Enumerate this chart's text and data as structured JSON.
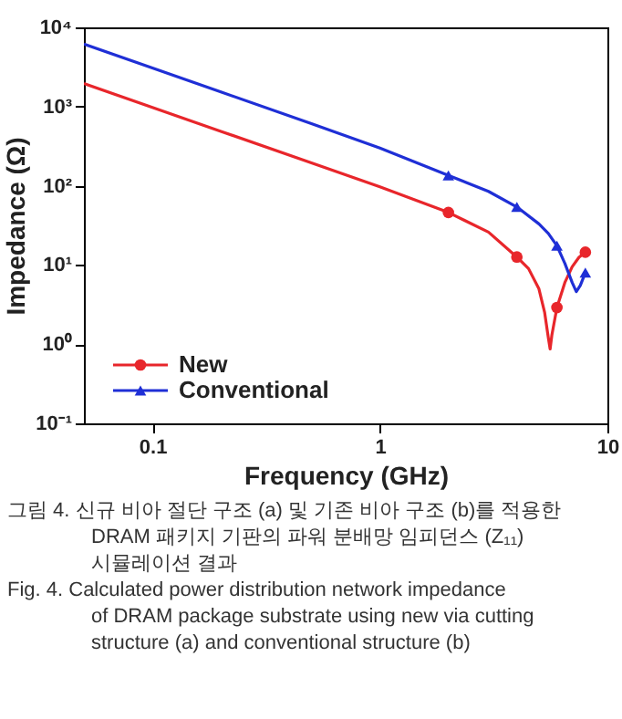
{
  "chart_data": {
    "type": "line",
    "xlabel": "Frequency (GHz)",
    "ylabel": "Impedance (Ω)",
    "log": "xy",
    "grid": false,
    "legend": "bottom left",
    "line_style": "solid",
    "xlim": [
      0.05,
      10
    ],
    "xticks": [
      0.1,
      1,
      10
    ],
    "ylim": [
      0.1,
      10000
    ],
    "yticks": [
      {
        "value": 0.1,
        "label": "10⁻¹"
      },
      {
        "value": 1,
        "label": "10⁰"
      },
      {
        "value": 10,
        "label": "10¹"
      },
      {
        "value": 100,
        "label": "10²"
      },
      {
        "value": 1000,
        "label": "10³"
      },
      {
        "value": 10000,
        "label": "10⁴"
      }
    ],
    "series": [
      {
        "name": "New",
        "color": "#e8262b",
        "marker": "none",
        "x": [
          0.05,
          0.1,
          0.2,
          0.5,
          1,
          2,
          3,
          4,
          4.5,
          5,
          5.3,
          5.5,
          5.6,
          5.7,
          6,
          6.5,
          7,
          7.5,
          8
        ],
        "values": [
          1950,
          975,
          487,
          195,
          97,
          46,
          26,
          12.6,
          9,
          5,
          2.5,
          1.2,
          0.87,
          1.3,
          2.9,
          6,
          9.5,
          12.5,
          14.5
        ]
      },
      {
        "type": "scatter",
        "color": "#e8262b",
        "marker": "circle",
        "x": [
          2,
          4,
          6,
          8
        ],
        "values": [
          46,
          12.6,
          2.9,
          14.5
        ]
      },
      {
        "name": "Conventional",
        "color": "#1f2fd6",
        "marker": "none",
        "x": [
          0.05,
          0.1,
          0.2,
          0.5,
          1,
          2,
          3,
          4,
          5,
          5.5,
          6,
          6.5,
          7,
          7.3,
          7.6,
          8
        ],
        "values": [
          6150,
          3070,
          1530,
          610,
          300,
          135,
          85,
          54,
          33,
          25,
          17.5,
          10.5,
          6,
          4.6,
          5.5,
          8
        ]
      },
      {
        "type": "scatter",
        "color": "#1f2fd6",
        "marker": "triangle",
        "x": [
          2,
          4,
          6,
          8
        ],
        "values": [
          135,
          54,
          17.5,
          8
        ]
      }
    ],
    "annotations": [
      "그림 4. 신규 비아 절단 구조 (a) 및 기존 비아 구조 (b)를 적용한 DRAM 패키지 기판의 파워 분배망 임피던스 (Z₁₁) 시뮬레이션 결과",
      "Fig. 4. Calculated power distribution network impedance of DRAM package substrate using new via cutting structure (a) and conventional structure (b)"
    ]
  }
}
